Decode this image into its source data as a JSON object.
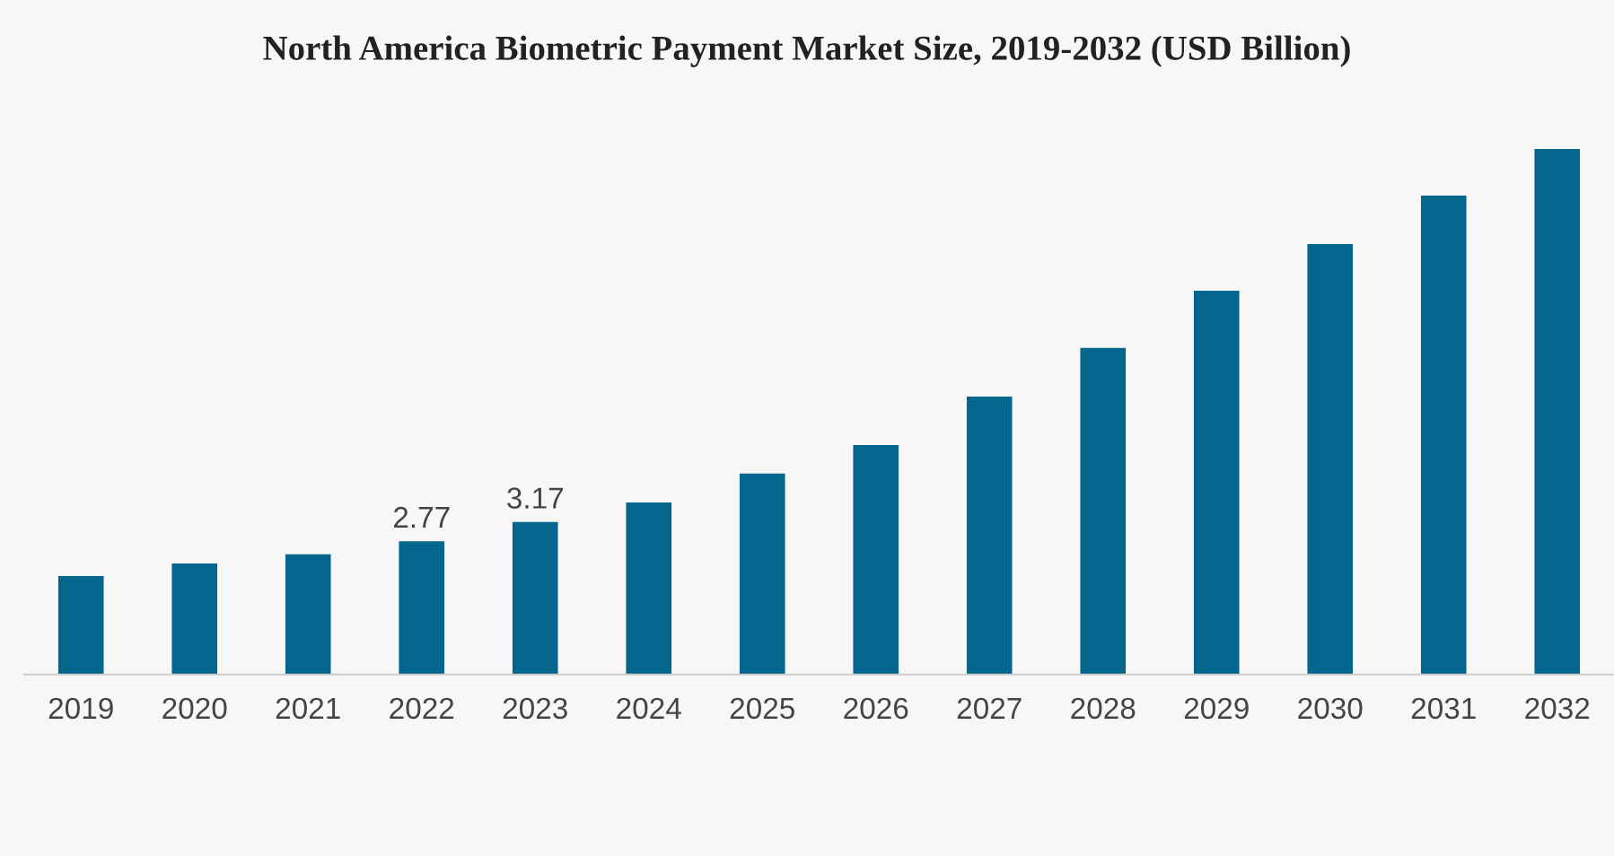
{
  "chart_data": {
    "type": "bar",
    "title": "North America Biometric Payment Market Size, 2019-2032 (USD Billion)",
    "categories": [
      "2019",
      "2020",
      "2021",
      "2022",
      "2023",
      "2024",
      "2025",
      "2026",
      "2027",
      "2028",
      "2029",
      "2030",
      "2031",
      "2032"
    ],
    "values": [
      2.05,
      2.31,
      2.5,
      2.77,
      3.17,
      3.58,
      4.18,
      4.77,
      5.78,
      6.79,
      7.98,
      8.95,
      9.96,
      10.93
    ],
    "value_labels": [
      null,
      null,
      null,
      "2.77",
      "3.17",
      null,
      null,
      null,
      null,
      null,
      null,
      null,
      null,
      null
    ],
    "color": "#04668c",
    "grid": false,
    "legend": false
  }
}
